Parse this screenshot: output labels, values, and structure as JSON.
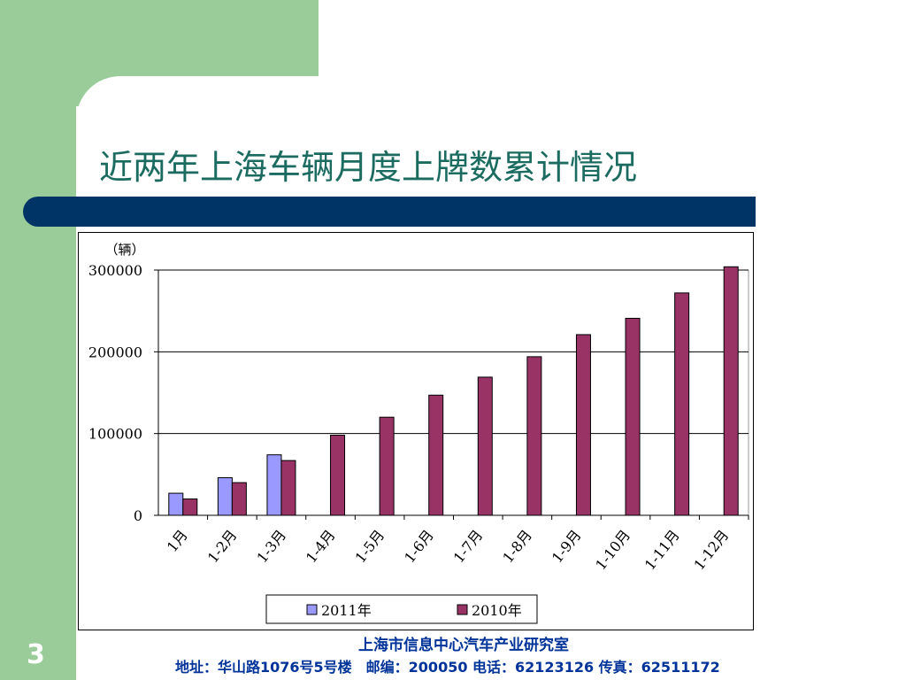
{
  "slide": {
    "title": "近两年上海车辆月度上牌数累计情况",
    "number": "3",
    "footer_org": "上海市信息中心汽车产业研究室",
    "footer_address": "地址：华山路1076号5号楼　邮编：200050  电话：62123126  传真：62511172"
  },
  "colors": {
    "green": "#99cc99",
    "navy": "#003366",
    "title": "#1b6b60",
    "footer": "#003399",
    "series_2011": "#9999ff",
    "series_2010": "#993366"
  },
  "chart_data": {
    "type": "bar",
    "title": "",
    "ylabel": "（辆）",
    "xlabel": "",
    "ylim": [
      0,
      300000
    ],
    "yticks": [
      0,
      100000,
      200000,
      300000
    ],
    "grid": true,
    "legend_position": "bottom",
    "categories": [
      "1月",
      "1-2月",
      "1-3月",
      "1-4月",
      "1-5月",
      "1-6月",
      "1-7月",
      "1-8月",
      "1-9月",
      "1-10月",
      "1-11月",
      "1-12月"
    ],
    "series": [
      {
        "name": "2011年",
        "color": "#9999ff",
        "values": [
          27000,
          46000,
          74000,
          null,
          null,
          null,
          null,
          null,
          null,
          null,
          null,
          null
        ]
      },
      {
        "name": "2010年",
        "color": "#993366",
        "values": [
          20000,
          40000,
          67000,
          98000,
          120000,
          147000,
          169000,
          194000,
          221000,
          241000,
          272000,
          304000
        ]
      }
    ]
  }
}
